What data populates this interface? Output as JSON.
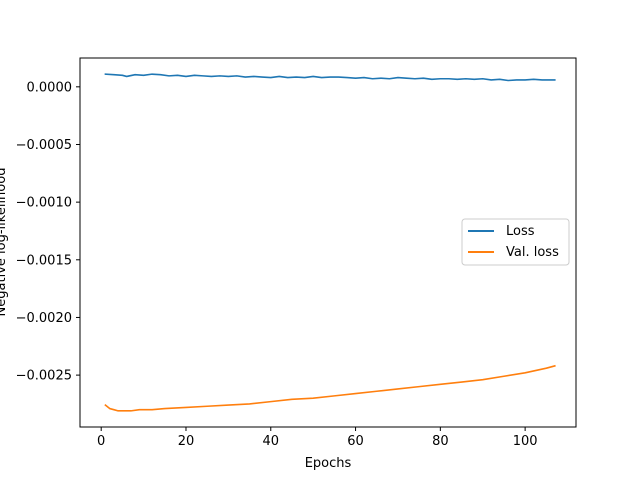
{
  "chart_data": {
    "type": "line",
    "title": "",
    "xlabel": "Epochs",
    "ylabel": "Negative log-likelihood",
    "xlim": [
      -5,
      112
    ],
    "ylim": [
      -0.00295,
      0.00025
    ],
    "xticks": [
      0,
      20,
      40,
      60,
      80,
      100
    ],
    "xtick_labels": [
      "0",
      "20",
      "40",
      "60",
      "80",
      "100"
    ],
    "yticks": [
      0.0,
      -0.0005,
      -0.001,
      -0.0015,
      -0.002,
      -0.0025
    ],
    "ytick_labels": [
      "0.0000",
      "−0.0005",
      "−0.0010",
      "−0.0015",
      "−0.0020",
      "−0.0025"
    ],
    "grid": false,
    "legend_position": "center-right",
    "series": [
      {
        "name": "Loss",
        "color": "#1f77b4",
        "x": [
          1,
          3,
          5,
          6,
          8,
          10,
          12,
          14,
          16,
          18,
          20,
          22,
          24,
          26,
          28,
          30,
          32,
          34,
          36,
          38,
          40,
          42,
          44,
          46,
          48,
          50,
          52,
          54,
          56,
          58,
          60,
          62,
          64,
          66,
          68,
          70,
          72,
          74,
          76,
          78,
          80,
          82,
          84,
          86,
          88,
          90,
          92,
          94,
          96,
          98,
          100,
          102,
          104,
          107
        ],
        "values": [
          0.00011,
          0.000105,
          0.0001,
          9e-05,
          0.000105,
          0.0001,
          0.00011,
          0.000105,
          9.5e-05,
          0.0001,
          9e-05,
          0.0001,
          9.5e-05,
          9e-05,
          9.5e-05,
          9e-05,
          9.5e-05,
          8.5e-05,
          9e-05,
          8.5e-05,
          8e-05,
          9e-05,
          8e-05,
          8.5e-05,
          8e-05,
          9e-05,
          8e-05,
          8.5e-05,
          8.5e-05,
          8e-05,
          7.5e-05,
          8e-05,
          7e-05,
          7.5e-05,
          7e-05,
          8e-05,
          7.5e-05,
          7e-05,
          7.5e-05,
          6.5e-05,
          7e-05,
          7e-05,
          6.5e-05,
          7e-05,
          6.5e-05,
          7e-05,
          6e-05,
          6.5e-05,
          5.5e-05,
          6e-05,
          6e-05,
          6.5e-05,
          6e-05,
          6e-05
        ]
      },
      {
        "name": "Val. loss",
        "color": "#ff7f0e",
        "x": [
          1,
          2,
          3,
          4,
          5,
          7,
          9,
          12,
          15,
          20,
          25,
          30,
          35,
          40,
          45,
          50,
          55,
          60,
          65,
          70,
          75,
          80,
          85,
          90,
          95,
          100,
          105,
          107
        ],
        "values": [
          -0.00276,
          -0.00279,
          -0.0028,
          -0.00281,
          -0.00281,
          -0.00281,
          -0.0028,
          -0.0028,
          -0.00279,
          -0.00278,
          -0.00277,
          -0.00276,
          -0.00275,
          -0.00273,
          -0.00271,
          -0.0027,
          -0.00268,
          -0.00266,
          -0.00264,
          -0.00262,
          -0.0026,
          -0.00258,
          -0.00256,
          -0.00254,
          -0.00251,
          -0.00248,
          -0.00244,
          -0.00242
        ]
      }
    ]
  }
}
